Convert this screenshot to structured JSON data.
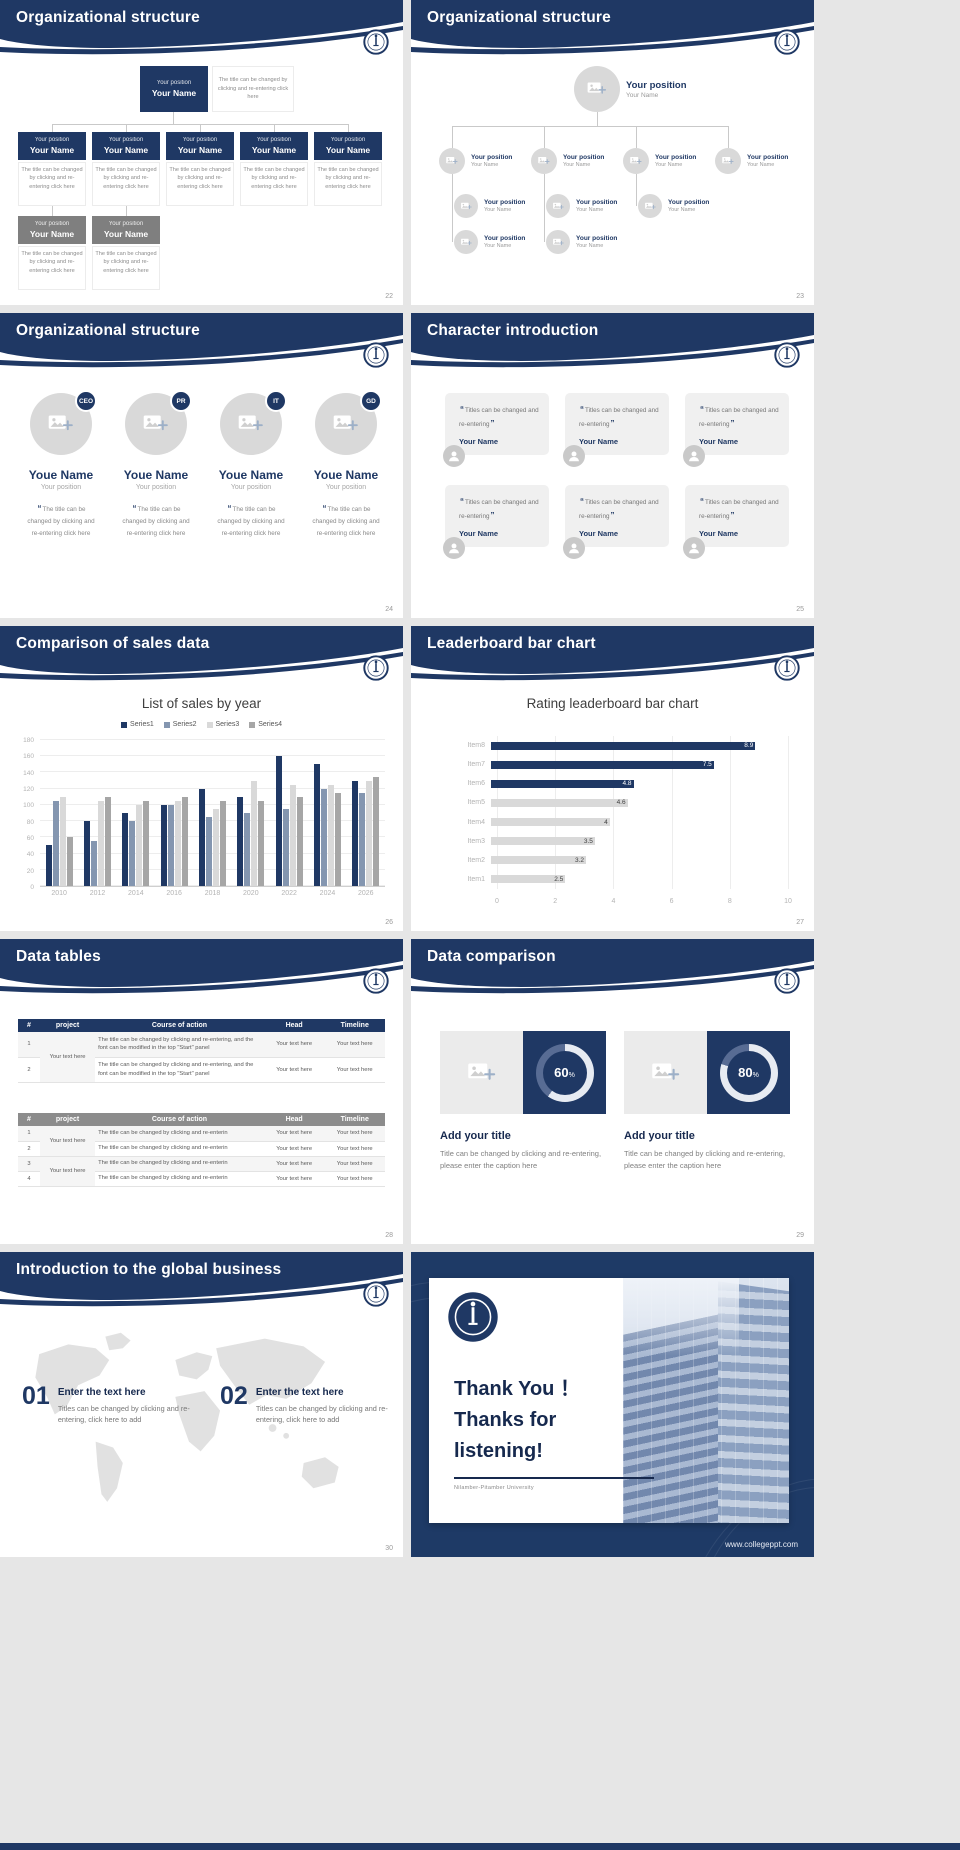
{
  "theme": {
    "navy": "#1f3864",
    "gray_box": "#7f7f7f",
    "light_gray": "#d9d9d9"
  },
  "site": {
    "footer_url": "www.collegeppt.com"
  },
  "common": {
    "your_position": "Your position",
    "your_name": "Your Name",
    "youe_name": "Youe Name",
    "your_text_here": "Your text here",
    "org_desc": "The title can be changed by clicking and re-entering click here",
    "open_quote": "“",
    "close_quote": "”",
    "percent_sign": "%"
  },
  "slides": {
    "s22": {
      "title": "Organizational structure",
      "page": "22"
    },
    "s23": {
      "title": "Organizational structure",
      "page": "23"
    },
    "s24": {
      "title": "Organizational structure",
      "page": "24",
      "badges": [
        "CEO",
        "PR",
        "IT",
        "GD"
      ],
      "desc": "The title can be changed by clicking and re-entering click here"
    },
    "s25": {
      "title": "Character introduction",
      "page": "25",
      "card_text": "Titles can be changed and re-entering"
    },
    "s26": {
      "title": "Comparison of sales data",
      "page": "26"
    },
    "s27": {
      "title": "Leaderboard bar chart",
      "page": "27"
    },
    "s28": {
      "title": "Data tables",
      "page": "28",
      "headers": [
        "#",
        "project",
        "Course of action",
        "Head",
        "Timeline"
      ],
      "t1_nums": [
        "1",
        "2"
      ],
      "t2_nums": [
        "1",
        "2",
        "3",
        "4"
      ],
      "t1_course": "The title can be changed by clicking and re-entering, and the font can be modified in the top \"Start\" panel",
      "t2_course": "The title can be changed by clicking and re-enterin"
    },
    "s29": {
      "title": "Data comparison",
      "page": "29",
      "items": [
        {
          "percent": 60
        },
        {
          "percent": 80
        }
      ],
      "item_title": "Add your title",
      "item_text": "Title can be changed by clicking and re-entering, please enter the caption here"
    },
    "s30": {
      "title": "Introduction to the global business",
      "page": "30",
      "steps": [
        {
          "num": "01",
          "title": "Enter the text here",
          "text": "Titles can be changed by clicking and re-entering, click here to add"
        },
        {
          "num": "02",
          "title": "Enter the text here",
          "text": "Titles can be changed by clicking and re-entering, click here to add"
        }
      ]
    },
    "thanks": {
      "line1": "Thank You ！",
      "line2": "Thanks for listening!",
      "caption": "Nilamber-Pitamber University"
    }
  },
  "chart_data": [
    {
      "type": "bar",
      "target": "sales-chart",
      "title": "List of sales by year",
      "categories": [
        "2010",
        "2012",
        "2014",
        "2016",
        "2018",
        "2020",
        "2022",
        "2024",
        "2026"
      ],
      "series": [
        {
          "name": "Series1",
          "color": "#1f3864",
          "values": [
            50,
            80,
            90,
            100,
            120,
            110,
            160,
            150,
            130
          ]
        },
        {
          "name": "Series2",
          "color": "#8496b0",
          "values": [
            105,
            55,
            80,
            100,
            85,
            90,
            95,
            120,
            115
          ]
        },
        {
          "name": "Series3",
          "color": "#d9d9d9",
          "values": [
            110,
            105,
            100,
            105,
            95,
            130,
            125,
            125,
            130
          ]
        },
        {
          "name": "Series4",
          "color": "#a6a6a6",
          "values": [
            60,
            110,
            105,
            110,
            105,
            105,
            110,
            115,
            135
          ]
        }
      ],
      "ylim": [
        0,
        180
      ],
      "ytick_step": 20,
      "grid": true,
      "legend_position": "top"
    },
    {
      "type": "bar_horizontal",
      "target": "leaderboard-chart",
      "title": "Rating leaderboard bar chart",
      "categories": [
        "Item8",
        "Item7",
        "Item6",
        "Item5",
        "Item4",
        "Item3",
        "Item2",
        "Item1"
      ],
      "values": [
        8.9,
        7.5,
        4.8,
        4.6,
        4,
        3.5,
        3.2,
        2.5
      ],
      "colors": [
        "#1f3864",
        "#1f3864",
        "#1f3864",
        "#d9d9d9",
        "#d9d9d9",
        "#d9d9d9",
        "#d9d9d9",
        "#d9d9d9"
      ],
      "value_label_colors": [
        "#ffffff",
        "#ffffff",
        "#ffffff",
        "#404040",
        "#404040",
        "#404040",
        "#404040",
        "#404040"
      ],
      "xlim": [
        0,
        10
      ],
      "xticks": [
        0,
        2,
        4,
        6,
        8,
        10
      ],
      "grid": true
    }
  ]
}
